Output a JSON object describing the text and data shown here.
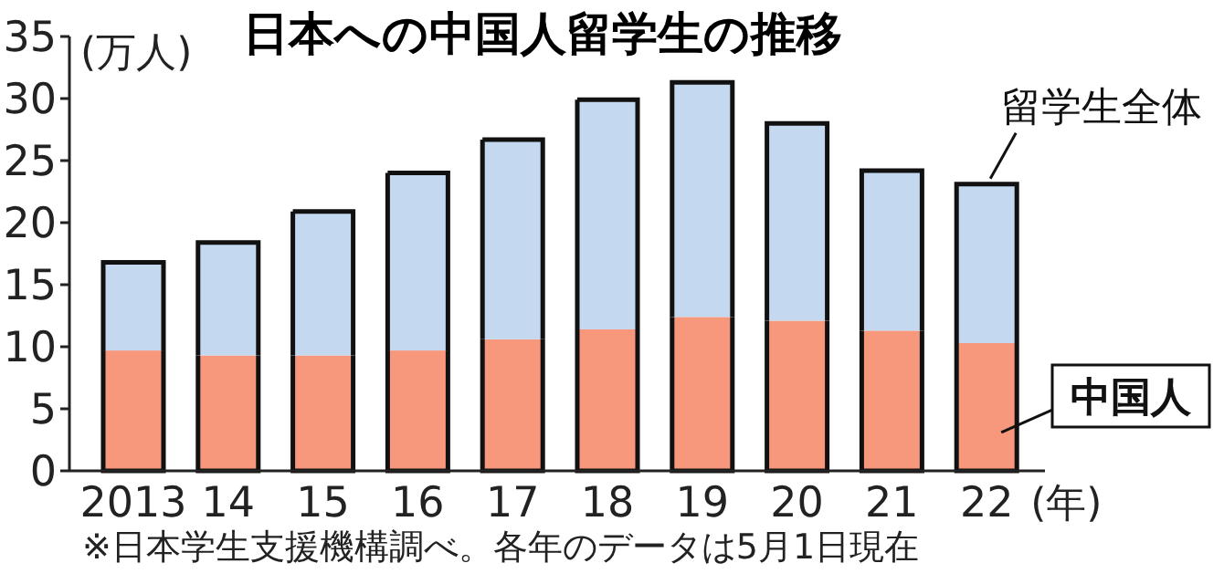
{
  "chart_data": {
    "type": "bar",
    "stacked": true,
    "title": "日本への中国人留学生の推移",
    "ylabel": "(万人)",
    "xlabel": "(年)",
    "categories": [
      "2013",
      "14",
      "15",
      "16",
      "17",
      "18",
      "19",
      "20",
      "21",
      "22"
    ],
    "series": [
      {
        "name": "中国人",
        "color": "#f7977c",
        "values": [
          9.7,
          9.3,
          9.3,
          9.7,
          10.6,
          11.4,
          12.4,
          12.1,
          11.3,
          10.3
        ]
      },
      {
        "name": "留学生全体",
        "color": "#c4d8ef",
        "values": [
          7.1,
          9.1,
          11.6,
          14.3,
          16.1,
          18.5,
          18.9,
          15.9,
          12.9,
          12.8
        ]
      }
    ],
    "ylim": [
      0,
      35
    ],
    "yticks": [
      0,
      5,
      10,
      15,
      20,
      25,
      30,
      35
    ],
    "grid": false,
    "legend": "right",
    "annotations": [
      "※日本学生支援機構調べ。各年のデータは5月1日現在"
    ]
  }
}
